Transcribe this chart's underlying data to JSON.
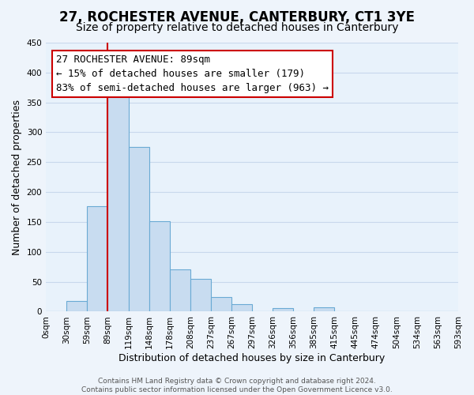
{
  "title": "27, ROCHESTER AVENUE, CANTERBURY, CT1 3YE",
  "subtitle": "Size of property relative to detached houses in Canterbury",
  "xlabel": "Distribution of detached houses by size in Canterbury",
  "ylabel": "Number of detached properties",
  "bar_color": "#c8dcf0",
  "bar_edge_color": "#6aaad4",
  "background_color": "#e8f2fb",
  "fig_bg_color": "#eef4fb",
  "bin_labels": [
    "0sqm",
    "30sqm",
    "59sqm",
    "89sqm",
    "119sqm",
    "148sqm",
    "178sqm",
    "208sqm",
    "237sqm",
    "267sqm",
    "297sqm",
    "326sqm",
    "356sqm",
    "385sqm",
    "415sqm",
    "445sqm",
    "474sqm",
    "504sqm",
    "534sqm",
    "563sqm",
    "593sqm"
  ],
  "bar_heights": [
    0,
    18,
    176,
    365,
    275,
    151,
    70,
    55,
    24,
    13,
    0,
    6,
    0,
    7,
    0,
    0,
    1,
    0,
    0,
    1
  ],
  "vline_x": 3,
  "vline_color": "#cc0000",
  "ylim": [
    0,
    450
  ],
  "yticks": [
    0,
    50,
    100,
    150,
    200,
    250,
    300,
    350,
    400,
    450
  ],
  "annotation_title": "27 ROCHESTER AVENUE: 89sqm",
  "annotation_line1": "← 15% of detached houses are smaller (179)",
  "annotation_line2": "83% of semi-detached houses are larger (963) →",
  "footer_line1": "Contains HM Land Registry data © Crown copyright and database right 2024.",
  "footer_line2": "Contains public sector information licensed under the Open Government Licence v3.0.",
  "grid_color": "#c8d8ec",
  "title_fontsize": 12,
  "subtitle_fontsize": 10,
  "axis_label_fontsize": 9,
  "tick_fontsize": 7.5,
  "annotation_fontsize": 9,
  "footer_fontsize": 6.5
}
